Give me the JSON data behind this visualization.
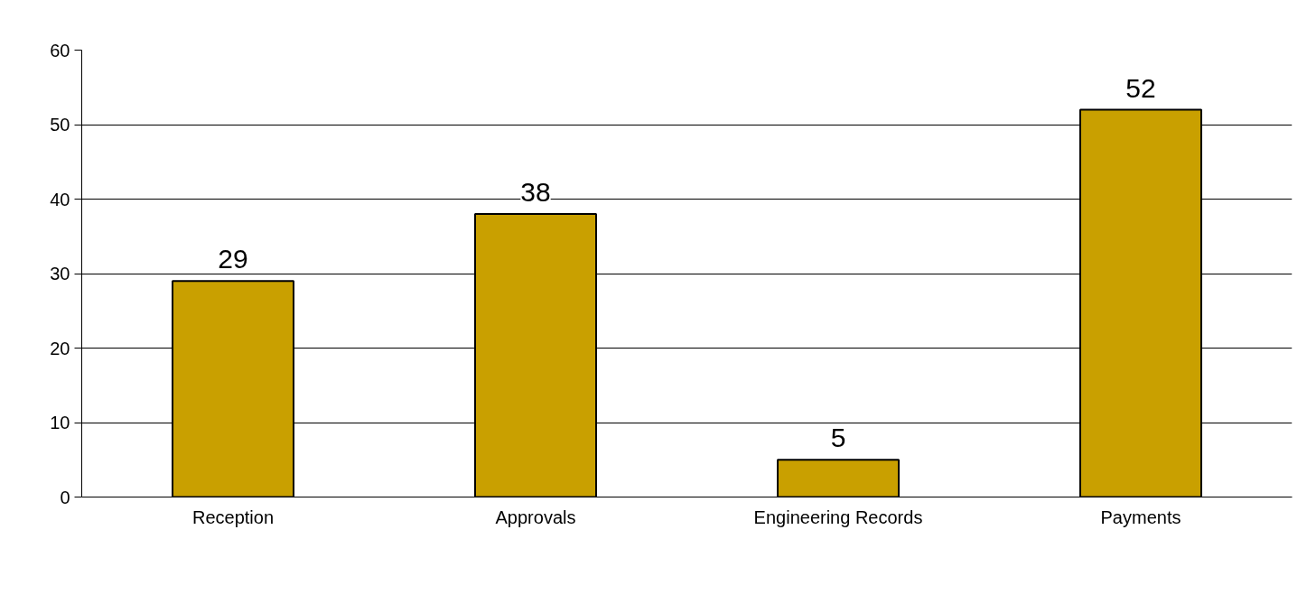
{
  "chart_data": {
    "type": "bar",
    "categories": [
      "Reception",
      "Approvals",
      "Engineering Records",
      "Payments"
    ],
    "values": [
      29,
      38,
      5,
      52
    ],
    "color": "#c9a000",
    "ylim": [
      0,
      60
    ],
    "yticks": [
      0,
      10,
      20,
      30,
      40,
      50,
      60
    ],
    "grid": "y",
    "data_labels": true
  }
}
